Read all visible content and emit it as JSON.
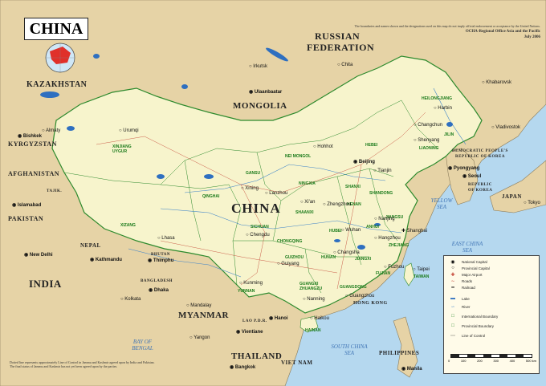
{
  "title": "CHINA",
  "disclaimer": {
    "line1": "The boundaries and names shown and the designations used on this map do not imply official endorsement or acceptance by the United Nations.",
    "line2": "OCHA-Regional Office Asia and the Pacific",
    "line3": "July 2006"
  },
  "kashmir_note": {
    "line1": "Dotted line represents approximately Line of Control in Jammu and Kashmir agreed upon by India and Pakistan.",
    "line2": "The final status of Jammu and Kashmir has not yet been agreed upon by the parties."
  },
  "countries": {
    "china": "CHINA",
    "russia1": "RUSSIAN",
    "russia2": "FEDERATION",
    "mongolia": "MONGOLIA",
    "kazakhstan": "KAZAKHSTAN",
    "kyrgyzstan": "KYRGYZSTAN",
    "afghanistan": "AFGHANISTAN",
    "pakistan": "PAKISTAN",
    "india": "INDIA",
    "nepal": "NEPAL",
    "bhutan": "BHUTAN",
    "bangladesh": "BANGLADESH",
    "myanmar": "MYANMAR",
    "thailand": "THAILAND",
    "viet_nam": "VIET NAM",
    "lao": "LAO P.D.R.",
    "philippines": "PHILIPPINES",
    "dprk1": "DEMOCRATIC PEOPLE'S",
    "dprk2": "REPUBLIC OF KOREA",
    "rok1": "REPUBLIC",
    "rok2": "OF KOREA",
    "japan": "JAPAN",
    "tajikistan": "TAJIK.",
    "hong_kong": "HONG KONG"
  },
  "seas": {
    "yellow1": "YELLOW",
    "yellow2": "SEA",
    "east1": "EAST CHINA",
    "east2": "SEA",
    "south1": "SOUTH CHINA",
    "south2": "SEA",
    "bengal1": "BAY OF",
    "bengal2": "BENGAL"
  },
  "cities": {
    "beijing": "Beijing",
    "shanghai": "Shanghai",
    "tianjin": "Tianjin",
    "harbin": "Harbin",
    "changchun": "Changchun",
    "shenyang": "Shenyang",
    "hohhot": "Hohhot",
    "urumqi": "Urumqi",
    "lhasa": "Lhasa",
    "chengdu": "Chengdu",
    "kunming": "Kunming",
    "xian": "Xi'an",
    "lanzhou": "Lanzhou",
    "xining": "Xining",
    "wuhan": "Wuhan",
    "hangzhou": "Hangzhou",
    "nanjing": "Nanjing",
    "guangzhou": "Guangzhou",
    "zhengzhou": "Zhengzhou",
    "changsha": "Changsha",
    "guiyang": "Guiyang",
    "nanning": "Nanning",
    "fuzhou": "Fuzhou",
    "taipei": "Taipei",
    "haikou": "Haikou",
    "ulaanbaatar": "Ulaanbaatar",
    "almaty": "Almaty",
    "bishkek": "Bishkek",
    "kathmandu": "Kathmandu",
    "thimphu": "Thimphu",
    "new_delhi": "New Delhi",
    "islamabad": "Islamabad",
    "dhaka": "Dhaka",
    "hanoi": "Hanoi",
    "vientiane": "Vientiane",
    "bangkok": "Bangkok",
    "manila": "Manila",
    "seoul": "Seoul",
    "pyongyang": "Pyongyang",
    "vladivostok": "Vladivostok",
    "irkutsk": "Irkutsk",
    "chita": "Chita",
    "khabarovsk": "Khabarovsk",
    "tokyo": "Tokyo",
    "mandalay": "Mandalay",
    "yangon": "Yangon",
    "kolkata": "Kolkata"
  },
  "provinces": {
    "xinjiang1": "XINJIANG",
    "xinjiang2": "UYGUR",
    "xizang": "XIZANG",
    "qinghai": "QINGHAI",
    "gansu": "GANSU",
    "nei_mongol": "NEI MONGOL",
    "heilongjiang": "HEILONGJIANG",
    "jilin": "JILIN",
    "liaoning": "LIAONING",
    "hebei": "HEBEI",
    "shanxi": "SHANXI",
    "shaanxi": "SHAANXI",
    "ningxia": "NINGXIA",
    "sichuan": "SICHUAN",
    "yunnan": "YUNNAN",
    "guizhou": "GUIZHOU",
    "guangxi1": "GUANGXI",
    "guangxi2": "ZHUANGZU",
    "guangdong": "GUANGDONG",
    "hunan": "HUNAN",
    "hubei": "HUBEI",
    "henan": "HENAN",
    "shandong": "SHANDONG",
    "jiangsu": "JIANGSU",
    "anhui": "ANHUI",
    "zhejiang": "ZHEJIANG",
    "jiangxi": "JIANGXI",
    "fujian": "FUJIAN",
    "hainan": "HAINAN",
    "taiwan": "TAIWAN",
    "chongqing": "CHONGQING"
  },
  "legend": {
    "national_capital": "National Capital",
    "provincial_capital": "Provincial Capital",
    "major_airport": "Major Airport",
    "roads": "Roads",
    "railroad": "Railroad",
    "lake": "Lake",
    "river": "River",
    "intl_boundary": "International Boundary",
    "prov_boundary": "Provincial Boundary",
    "line_of_control": "Line of Control",
    "scale": [
      "0",
      "100",
      "200",
      "300",
      "400",
      "500 km"
    ]
  },
  "colors": {
    "china": "#f7f4cc",
    "neighbor": "#e6d3a6",
    "water": "#b5d8ef",
    "lake": "#2e6fc0",
    "boundary": "#2d8a2d",
    "road": "#c0392b"
  }
}
